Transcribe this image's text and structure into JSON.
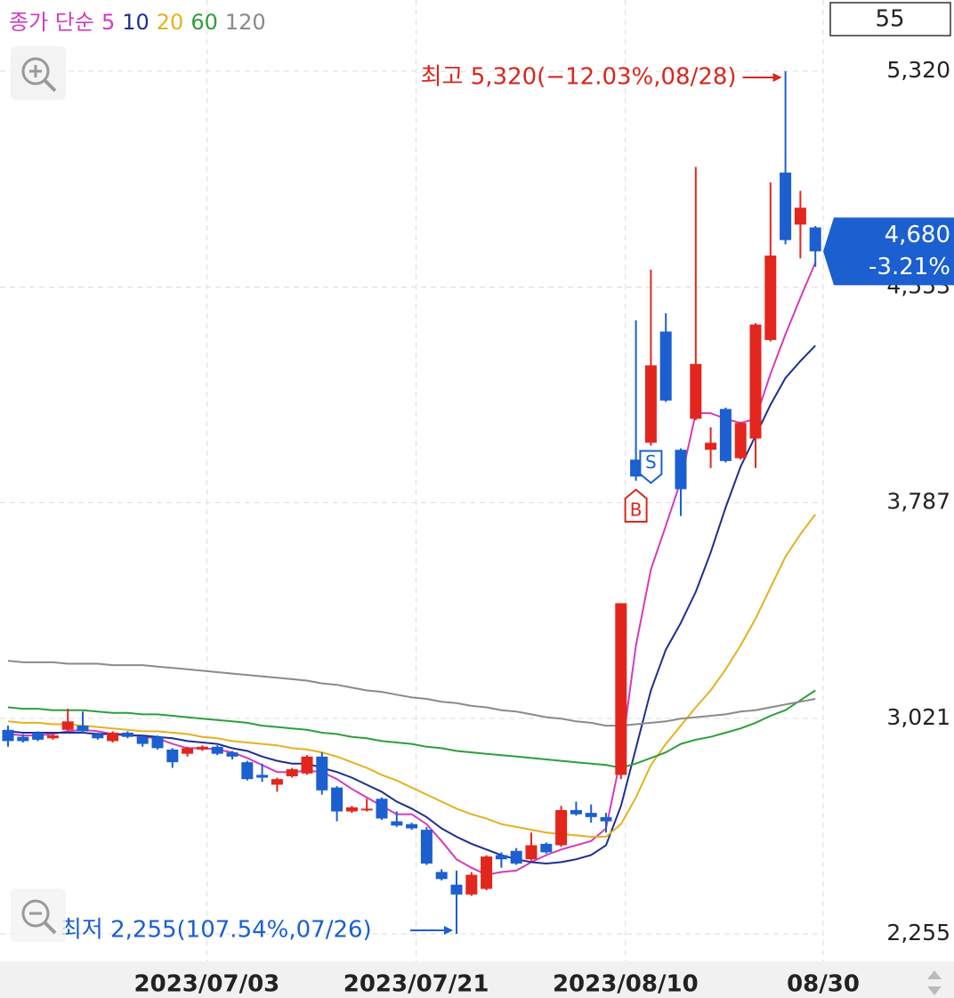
{
  "chart_data": {
    "type": "candlestick",
    "legend_prefix": "종가 단순",
    "count": 55,
    "categories": [
      null,
      null,
      null,
      null,
      null,
      null,
      null,
      null,
      null,
      null,
      null,
      null,
      null,
      "2023/07/03",
      null,
      null,
      null,
      null,
      null,
      null,
      null,
      null,
      null,
      null,
      null,
      null,
      null,
      "2023/07/21",
      null,
      null,
      null,
      null,
      null,
      null,
      null,
      null,
      null,
      null,
      null,
      null,
      null,
      "2023/08/10",
      null,
      null,
      null,
      null,
      null,
      null,
      null,
      null,
      null,
      null,
      null,
      null,
      "08/30"
    ],
    "open": [
      2980,
      2955,
      2970,
      2950,
      2980,
      2995,
      2965,
      2940,
      2970,
      2955,
      2955,
      2910,
      2895,
      2910,
      2920,
      2900,
      2865,
      2820,
      2785,
      2815,
      2825,
      2885,
      2775,
      2690,
      2695,
      2735,
      2655,
      2645,
      2625,
      2475,
      2430,
      2395,
      2415,
      2535,
      2550,
      2520,
      2575,
      2570,
      2695,
      2685,
      2670,
      2820,
      3940,
      4000,
      4395,
      3975,
      4085,
      3975,
      4120,
      3945,
      4015,
      4365,
      4960,
      4775,
      4765
    ],
    "high": [
      2995,
      2965,
      2975,
      2965,
      3055,
      3045,
      2970,
      2975,
      2975,
      2960,
      2960,
      2915,
      2920,
      2925,
      2925,
      2905,
      2870,
      2860,
      2810,
      2845,
      2890,
      2900,
      2780,
      2710,
      2735,
      2740,
      2690,
      2650,
      2635,
      2485,
      2480,
      2475,
      2535,
      2545,
      2560,
      2615,
      2580,
      2710,
      2725,
      2715,
      2685,
      3430,
      4435,
      4615,
      4460,
      3980,
      4980,
      4055,
      4125,
      4075,
      4425,
      4925,
      5320,
      4895,
      4770
    ],
    "low": [
      2920,
      2935,
      2940,
      2945,
      2975,
      2970,
      2945,
      2935,
      2950,
      2920,
      2910,
      2845,
      2885,
      2905,
      2890,
      2875,
      2800,
      2795,
      2760,
      2810,
      2820,
      2750,
      2655,
      2685,
      2690,
      2660,
      2635,
      2625,
      2500,
      2445,
      2255,
      2390,
      2410,
      2490,
      2500,
      2515,
      2540,
      2565,
      2675,
      2650,
      2615,
      2805,
      3865,
      3990,
      4145,
      3740,
      4080,
      3910,
      3930,
      3940,
      3910,
      4360,
      4705,
      4655,
      4625
    ],
    "close": [
      2940,
      2940,
      2945,
      2960,
      3010,
      2975,
      2950,
      2970,
      2955,
      2930,
      2915,
      2865,
      2915,
      2920,
      2895,
      2885,
      2805,
      2810,
      2805,
      2840,
      2885,
      2765,
      2690,
      2705,
      2700,
      2665,
      2640,
      2630,
      2505,
      2450,
      2395,
      2465,
      2530,
      2520,
      2505,
      2570,
      2545,
      2695,
      2680,
      2670,
      2655,
      3430,
      3880,
      4275,
      4150,
      3835,
      4280,
      4000,
      3935,
      4070,
      4420,
      4665,
      4720,
      4835,
      4680
    ],
    "up_color": "#e3261d",
    "down_color": "#1b5fd0",
    "series": [
      {
        "name": "5",
        "color": "#d23bbd",
        "values": [
          2965,
          2960,
          2960,
          2965,
          2975,
          2980,
          2975,
          2965,
          2965,
          2955,
          2950,
          2930,
          2915,
          2915,
          2910,
          2900,
          2880,
          2855,
          2830,
          2830,
          2835,
          2830,
          2805,
          2770,
          2740,
          2710,
          2680,
          2680,
          2645,
          2585,
          2520,
          2490,
          2465,
          2475,
          2480,
          2510,
          2535,
          2555,
          2570,
          2585,
          2630,
          2885,
          3280,
          3550,
          3705,
          3865,
          4105,
          4105,
          4085,
          4070,
          4085,
          4245,
          4385,
          4515,
          4640
        ]
      },
      {
        "name": "10",
        "color": "#1d2f8f",
        "values": [
          2975,
          2970,
          2970,
          2970,
          2970,
          2970,
          2965,
          2965,
          2960,
          2960,
          2955,
          2950,
          2940,
          2935,
          2930,
          2915,
          2905,
          2885,
          2870,
          2860,
          2860,
          2845,
          2830,
          2810,
          2785,
          2760,
          2725,
          2700,
          2670,
          2630,
          2600,
          2575,
          2555,
          2535,
          2520,
          2510,
          2505,
          2510,
          2520,
          2535,
          2570,
          2710,
          2915,
          3120,
          3265,
          3360,
          3470,
          3610,
          3770,
          3915,
          4025,
          4135,
          4230,
          4290,
          4345
        ]
      },
      {
        "name": "20",
        "color": "#e6b020",
        "values": [
          3010,
          3005,
          3005,
          3000,
          3000,
          2995,
          2990,
          2985,
          2980,
          2975,
          2975,
          2970,
          2965,
          2955,
          2950,
          2940,
          2935,
          2930,
          2925,
          2915,
          2910,
          2900,
          2885,
          2865,
          2845,
          2820,
          2800,
          2775,
          2750,
          2725,
          2700,
          2680,
          2665,
          2645,
          2635,
          2625,
          2615,
          2610,
          2605,
          2600,
          2600,
          2645,
          2740,
          2855,
          2930,
          2995,
          3060,
          3120,
          3195,
          3280,
          3375,
          3485,
          3595,
          3675,
          3745
        ]
      },
      {
        "name": "60",
        "color": "#2e9e3a",
        "values": [
          3060,
          3055,
          3055,
          3050,
          3050,
          3050,
          3045,
          3040,
          3040,
          3035,
          3035,
          3030,
          3025,
          3020,
          3015,
          3010,
          3005,
          2995,
          2990,
          2985,
          2980,
          2970,
          2965,
          2955,
          2950,
          2940,
          2935,
          2930,
          2920,
          2915,
          2905,
          2900,
          2895,
          2890,
          2885,
          2880,
          2875,
          2870,
          2865,
          2860,
          2855,
          2845,
          2860,
          2880,
          2900,
          2930,
          2945,
          2955,
          2970,
          2985,
          3005,
          3030,
          3050,
          3085,
          3120
        ]
      },
      {
        "name": "120",
        "color": "#8a8a8a",
        "values": [
          3225,
          3220,
          3220,
          3220,
          3215,
          3215,
          3215,
          3210,
          3210,
          3210,
          3205,
          3200,
          3195,
          3190,
          3185,
          3180,
          3175,
          3170,
          3165,
          3160,
          3155,
          3145,
          3140,
          3130,
          3120,
          3115,
          3105,
          3095,
          3090,
          3080,
          3075,
          3065,
          3060,
          3050,
          3045,
          3035,
          3025,
          3020,
          3010,
          3005,
          2995,
          2995,
          3000,
          3005,
          3010,
          3020,
          3025,
          3030,
          3035,
          3045,
          3050,
          3060,
          3070,
          3080,
          3090
        ]
      }
    ],
    "ylim": [
      2157,
      5573
    ],
    "yticks": [
      {
        "value": 2255,
        "label": "2,255"
      },
      {
        "value": 3021,
        "label": "3,021"
      },
      {
        "value": 3787,
        "label": "3,787"
      },
      {
        "value": 4553,
        "label": "4,553"
      },
      {
        "value": 5320,
        "label": "5,320"
      }
    ],
    "grid": true,
    "last_price": {
      "value": 4680,
      "label": "4,680",
      "change": -3.21,
      "change_label": "-3.21%"
    },
    "annotations": [
      {
        "text": "최고 5,320(−12.03%,08/28)",
        "value": 5320,
        "color": "#d9261c"
      },
      {
        "text": "최저 2,255(107.54%,07/26)",
        "value": 2255,
        "color": "#1b5fd0"
      }
    ],
    "signals": [
      {
        "label": "B",
        "color": "#d9261c"
      },
      {
        "label": "S",
        "color": "#1b5fd0"
      }
    ]
  }
}
